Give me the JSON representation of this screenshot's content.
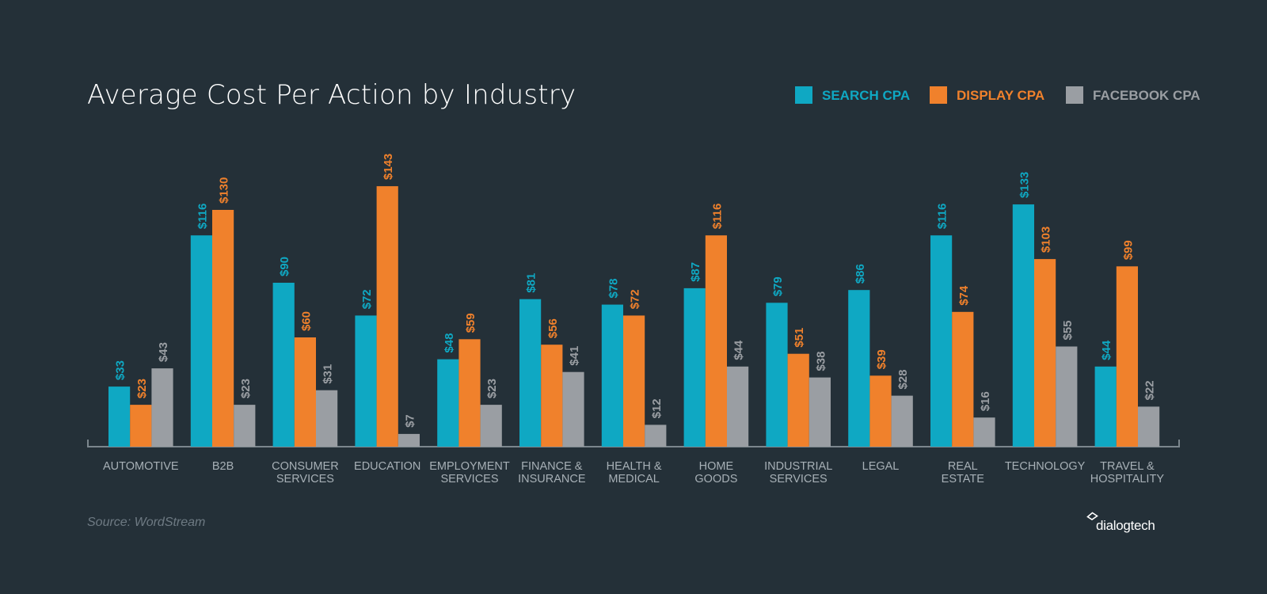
{
  "chart_data": {
    "type": "bar",
    "title": "Average Cost Per Action by Industry",
    "categories": [
      "AUTOMOTIVE",
      "B2B",
      "CONSUMER\nSERVICES",
      "EDUCATION",
      "EMPLOYMENT\nSERVICES",
      "FINANCE &\nINSURANCE",
      "HEALTH &\nMEDICAL",
      "HOME\nGOODS",
      "INDUSTRIAL\nSERVICES",
      "LEGAL",
      "REAL\nESTATE",
      "TECHNOLOGY",
      "TRAVEL &\nHOSPITALITY"
    ],
    "series": [
      {
        "name": "SEARCH CPA",
        "color": "#0fa8c3",
        "values": [
          33,
          116,
          90,
          72,
          48,
          81,
          78,
          87,
          79,
          86,
          116,
          133,
          44
        ],
        "labels": [
          "$33",
          "$116",
          "$90",
          "$72",
          "$48",
          "$81",
          "$78",
          "$87",
          "$79",
          "$86",
          "$116",
          "$133",
          "$44"
        ]
      },
      {
        "name": "DISPLAY CPA",
        "color": "#f0812c",
        "values": [
          23,
          130,
          60,
          143,
          59,
          56,
          72,
          116,
          51,
          39,
          74,
          103,
          99
        ],
        "labels": [
          "$23",
          "$130",
          "$60",
          "$143",
          "$59",
          "$56",
          "$72",
          "$116",
          "$51",
          "$39",
          "$74",
          "$103",
          "$99"
        ]
      },
      {
        "name": "FACEBOOK CPA",
        "color": "#9a9ea3",
        "values": [
          43,
          23,
          31,
          7,
          23,
          41,
          12,
          44,
          38,
          28,
          16,
          55,
          22
        ],
        "labels": [
          "$43",
          "$23",
          "$31",
          "$7",
          "$23",
          "$41",
          "$12",
          "$44",
          "$38",
          "$28",
          "$16",
          "$55",
          "$22"
        ]
      }
    ],
    "ylim": [
      0,
      150
    ],
    "xlabel": "",
    "ylabel": "",
    "legend": "top-right",
    "grid": false
  },
  "source": "Source: WordStream",
  "logo": {
    "text": "dialogtech",
    "icon": "dialogtech-logo-icon"
  },
  "colors": {
    "background": "#243038",
    "axis": "#7b868d",
    "category_text": "#a7b0b6"
  }
}
